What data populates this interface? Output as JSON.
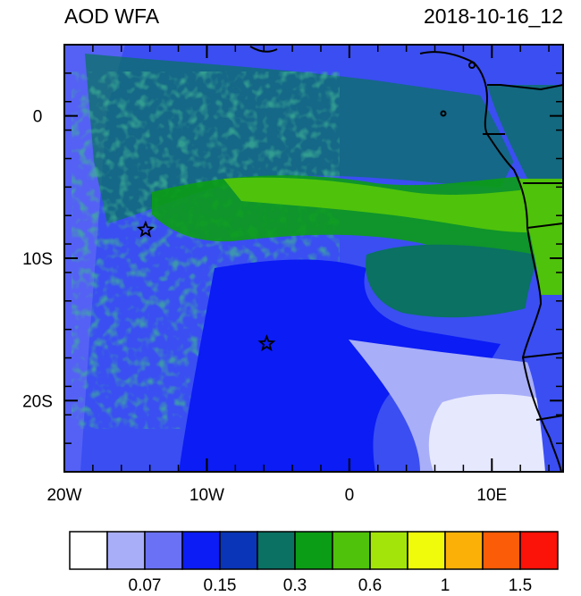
{
  "titles": {
    "left": "AOD WFA",
    "right": "2018-10-16_12"
  },
  "map": {
    "lon_range": [
      -20,
      15
    ],
    "lat_range": [
      -25,
      5
    ],
    "x_ticks": [
      {
        "value": -20,
        "label": "20W"
      },
      {
        "value": -10,
        "label": "10W"
      },
      {
        "value": 0,
        "label": "0"
      },
      {
        "value": 10,
        "label": "10E"
      }
    ],
    "y_ticks": [
      {
        "value": 0,
        "label": "0"
      },
      {
        "value": -10,
        "label": "10S"
      },
      {
        "value": -20,
        "label": "20S"
      }
    ],
    "markers": [
      {
        "name": "star",
        "lon": -14.3,
        "lat": -8.0
      },
      {
        "name": "star",
        "lon": -5.8,
        "lat": -16.0
      }
    ]
  },
  "colorbar": {
    "colors": [
      "#ffffff",
      "#a8aef8",
      "#6a71f5",
      "#0b1cf4",
      "#0a35b8",
      "#0a7163",
      "#0b9d15",
      "#4fc20b",
      "#a3e50b",
      "#f0fb0b",
      "#fbb008",
      "#fb5c07",
      "#fb1208"
    ],
    "labels": [
      {
        "after_box": 2,
        "text": "0.07"
      },
      {
        "after_box": 4,
        "text": "0.15"
      },
      {
        "after_box": 6,
        "text": "0.3"
      },
      {
        "after_box": 8,
        "text": "0.6"
      },
      {
        "after_box": 10,
        "text": "1"
      },
      {
        "after_box": 12,
        "text": "1.5"
      }
    ]
  }
}
